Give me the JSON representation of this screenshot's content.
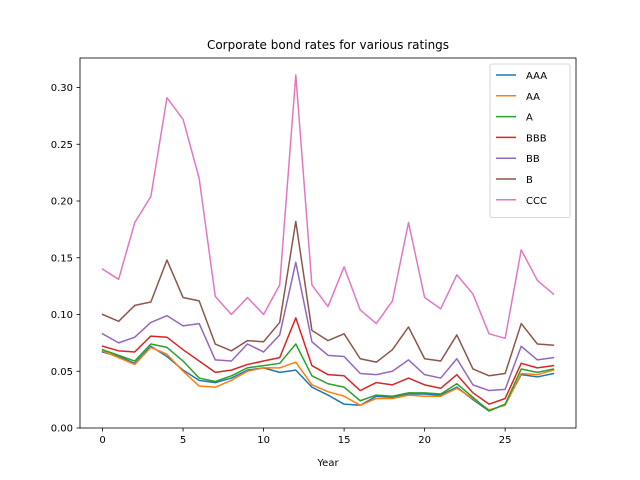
{
  "chart_data": {
    "type": "line",
    "title": "Corporate bond rates for various ratings",
    "xlabel": "Year",
    "ylabel": "",
    "xlim": [
      -1.4,
      29.4
    ],
    "ylim": [
      0.0,
      0.326
    ],
    "xticks": [
      0,
      5,
      10,
      15,
      20,
      25
    ],
    "xtick_labels": [
      "0",
      "5",
      "10",
      "15",
      "20",
      "25"
    ],
    "yticks": [
      0.0,
      0.05,
      0.1,
      0.15,
      0.2,
      0.25,
      0.3
    ],
    "ytick_labels": [
      "0.00",
      "0.05",
      "0.10",
      "0.15",
      "0.20",
      "0.25",
      "0.30"
    ],
    "grid": false,
    "legend_position": "upper right",
    "x": [
      0,
      1,
      2,
      3,
      4,
      5,
      6,
      7,
      8,
      9,
      10,
      11,
      12,
      13,
      14,
      15,
      16,
      17,
      18,
      19,
      20,
      21,
      22,
      23,
      24,
      25,
      26,
      27,
      28
    ],
    "series": [
      {
        "name": "AAA",
        "color": "#1f77b4",
        "values": [
          0.067,
          0.063,
          0.057,
          0.072,
          0.063,
          0.051,
          0.042,
          0.04,
          0.044,
          0.051,
          0.053,
          0.049,
          0.051,
          0.036,
          0.029,
          0.021,
          0.02,
          0.028,
          0.027,
          0.03,
          0.03,
          0.029,
          0.036,
          0.025,
          0.015,
          0.021,
          0.047,
          0.045,
          0.048
        ]
      },
      {
        "name": "AA",
        "color": "#ff7f0e",
        "values": [
          0.068,
          0.062,
          0.056,
          0.071,
          0.065,
          0.05,
          0.037,
          0.036,
          0.042,
          0.05,
          0.053,
          0.053,
          0.058,
          0.038,
          0.032,
          0.028,
          0.02,
          0.026,
          0.026,
          0.029,
          0.028,
          0.028,
          0.035,
          0.026,
          0.016,
          0.02,
          0.048,
          0.047,
          0.051
        ]
      },
      {
        "name": "A",
        "color": "#2ca02c",
        "values": [
          0.069,
          0.064,
          0.059,
          0.074,
          0.071,
          0.059,
          0.044,
          0.041,
          0.046,
          0.053,
          0.055,
          0.057,
          0.074,
          0.046,
          0.039,
          0.036,
          0.024,
          0.029,
          0.028,
          0.031,
          0.031,
          0.03,
          0.039,
          0.027,
          0.015,
          0.021,
          0.052,
          0.049,
          0.052
        ]
      },
      {
        "name": "BBB",
        "color": "#d62728",
        "values": [
          0.072,
          0.068,
          0.067,
          0.081,
          0.08,
          0.069,
          0.059,
          0.049,
          0.051,
          0.056,
          0.059,
          0.062,
          0.097,
          0.055,
          0.047,
          0.046,
          0.033,
          0.04,
          0.038,
          0.044,
          0.038,
          0.035,
          0.047,
          0.031,
          0.021,
          0.026,
          0.057,
          0.053,
          0.055
        ]
      },
      {
        "name": "BB",
        "color": "#9467bd",
        "values": [
          0.083,
          0.075,
          0.08,
          0.093,
          0.099,
          0.09,
          0.092,
          0.06,
          0.059,
          0.074,
          0.067,
          0.082,
          0.146,
          0.076,
          0.064,
          0.063,
          0.048,
          0.047,
          0.05,
          0.06,
          0.047,
          0.044,
          0.061,
          0.038,
          0.033,
          0.034,
          0.072,
          0.06,
          0.062
        ]
      },
      {
        "name": "B",
        "color": "#8c564b",
        "values": [
          0.1,
          0.094,
          0.108,
          0.111,
          0.148,
          0.115,
          0.112,
          0.074,
          0.068,
          0.077,
          0.076,
          0.093,
          0.182,
          0.086,
          0.077,
          0.083,
          0.061,
          0.058,
          0.069,
          0.089,
          0.061,
          0.059,
          0.082,
          0.052,
          0.046,
          0.048,
          0.092,
          0.074,
          0.073
        ]
      },
      {
        "name": "CCC",
        "color": "#e377c2",
        "values": [
          0.14,
          0.131,
          0.181,
          0.204,
          0.291,
          0.272,
          0.22,
          0.116,
          0.1,
          0.115,
          0.1,
          0.126,
          0.311,
          0.126,
          0.107,
          0.142,
          0.104,
          0.092,
          0.112,
          0.181,
          0.115,
          0.105,
          0.135,
          0.118,
          0.083,
          0.079,
          0.157,
          0.13,
          0.118
        ]
      }
    ]
  }
}
